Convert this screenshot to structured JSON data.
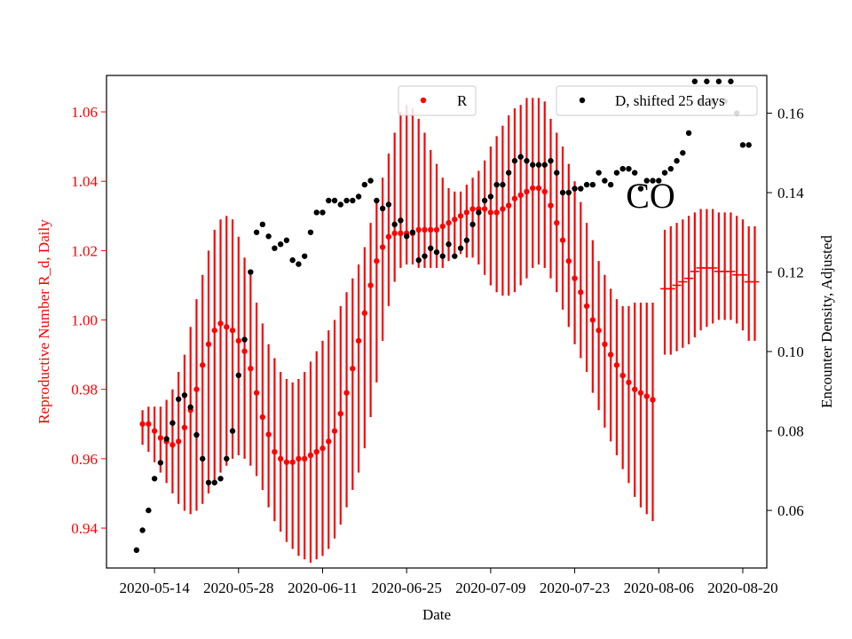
{
  "chart_data": {
    "type": "scatter",
    "region_label": "CO",
    "xlabel": "Date",
    "ylabel_left": "Reproductive Number R_d, Daily",
    "ylabel_right": "Encounter Density, Adjusted",
    "x_ticks": [
      "2020-05-14",
      "2020-05-28",
      "2020-06-11",
      "2020-06-25",
      "2020-07-09",
      "2020-07-23",
      "2020-08-06",
      "2020-08-20"
    ],
    "y_left_ticks": [
      0.94,
      0.96,
      0.98,
      1.0,
      1.02,
      1.04,
      1.06
    ],
    "y_right_ticks": [
      0.06,
      0.08,
      0.1,
      0.12,
      0.14,
      0.16
    ],
    "xlim": [
      "2020-05-06",
      "2020-08-24"
    ],
    "ylim_left": [
      0.9285,
      1.0705
    ],
    "ylim_right": [
      0.0455,
      0.1695
    ],
    "colors": {
      "R": "#ff0000",
      "D": "#000000"
    },
    "legend": [
      {
        "label": "R",
        "color": "#ff0000",
        "marker": "dot",
        "position": "top-center"
      },
      {
        "label": "D, shifted 25 days",
        "color": "#000000",
        "marker": "dot",
        "position": "top-right"
      }
    ],
    "series": [
      {
        "name": "R",
        "axis": "left",
        "start_date": "2020-05-12",
        "values": [
          0.97,
          0.97,
          0.968,
          0.966,
          0.965,
          0.964,
          0.965,
          0.969,
          0.974,
          0.98,
          0.987,
          0.993,
          0.997,
          0.999,
          0.998,
          0.997,
          0.994,
          0.991,
          0.986,
          0.979,
          0.972,
          0.967,
          0.962,
          0.96,
          0.959,
          0.959,
          0.96,
          0.96,
          0.961,
          0.962,
          0.963,
          0.965,
          0.968,
          0.973,
          0.979,
          0.986,
          0.994,
          1.002,
          1.01,
          1.017,
          1.021,
          1.024,
          1.025,
          1.025,
          1.025,
          1.025,
          1.026,
          1.026,
          1.026,
          1.026,
          1.027,
          1.028,
          1.029,
          1.03,
          1.031,
          1.032,
          1.032,
          1.032,
          1.031,
          1.031,
          1.032,
          1.033,
          1.035,
          1.036,
          1.037,
          1.038,
          1.038,
          1.037,
          1.033,
          1.028,
          1.023,
          1.017,
          1.012,
          1.008,
          1.004,
          1.0,
          0.997,
          0.993,
          0.99,
          0.987,
          0.984,
          0.982,
          0.98,
          0.979,
          0.978,
          0.977
        ],
        "err_low": [
          0.964,
          0.962,
          0.959,
          0.956,
          0.953,
          0.95,
          0.947,
          0.945,
          0.944,
          0.945,
          0.947,
          0.95,
          0.953,
          0.956,
          0.958,
          0.96,
          0.961,
          0.96,
          0.958,
          0.955,
          0.951,
          0.946,
          0.942,
          0.939,
          0.936,
          0.934,
          0.932,
          0.931,
          0.93,
          0.931,
          0.932,
          0.934,
          0.937,
          0.941,
          0.946,
          0.951,
          0.956,
          0.963,
          0.972,
          0.982,
          0.994,
          1.004,
          1.011,
          1.015,
          1.016,
          1.016,
          1.015,
          1.015,
          1.015,
          1.015,
          1.015,
          1.017,
          1.018,
          1.019,
          1.018,
          1.018,
          1.016,
          1.013,
          1.01,
          1.008,
          1.007,
          1.007,
          1.008,
          1.01,
          1.012,
          1.015,
          1.016,
          1.015,
          1.012,
          1.008,
          1.003,
          0.998,
          0.993,
          0.989,
          0.985,
          0.979,
          0.974,
          0.969,
          0.965,
          0.961,
          0.957,
          0.953,
          0.949,
          0.946,
          0.944,
          0.942
        ],
        "err_high": [
          0.974,
          0.975,
          0.975,
          0.975,
          0.977,
          0.98,
          0.985,
          0.99,
          0.998,
          1.006,
          1.013,
          1.02,
          1.026,
          1.029,
          1.03,
          1.029,
          1.024,
          1.018,
          1.013,
          1.005,
          0.999,
          0.993,
          0.989,
          0.985,
          0.983,
          0.982,
          0.983,
          0.985,
          0.988,
          0.991,
          0.994,
          0.997,
          1.0,
          1.004,
          1.008,
          1.012,
          1.016,
          1.021,
          1.028,
          1.034,
          1.041,
          1.048,
          1.054,
          1.06,
          1.062,
          1.061,
          1.058,
          1.054,
          1.049,
          1.045,
          1.041,
          1.038,
          1.037,
          1.037,
          1.039,
          1.041,
          1.043,
          1.046,
          1.05,
          1.053,
          1.056,
          1.059,
          1.061,
          1.062,
          1.064,
          1.064,
          1.064,
          1.063,
          1.058,
          1.054,
          1.05,
          1.045,
          1.04,
          1.034,
          1.028,
          1.023,
          1.017,
          1.013,
          1.009,
          1.006,
          1.004,
          1.004,
          1.005,
          1.005,
          1.005,
          1.005
        ]
      },
      {
        "name": "R_projected",
        "axis": "left",
        "start_date": "2020-08-07",
        "values": [
          1.009,
          1.009,
          1.01,
          1.011,
          1.012,
          1.014,
          1.015,
          1.015,
          1.015,
          1.014,
          1.014,
          1.014,
          1.013,
          1.013,
          1.011,
          1.011
        ],
        "err_low": [
          0.99,
          0.99,
          0.991,
          0.992,
          0.993,
          0.995,
          0.997,
          0.998,
          0.999,
          1.0,
          1.0,
          1.0,
          0.999,
          0.997,
          0.994,
          0.994
        ],
        "err_high": [
          1.026,
          1.027,
          1.028,
          1.029,
          1.03,
          1.031,
          1.032,
          1.032,
          1.032,
          1.031,
          1.031,
          1.031,
          1.03,
          1.029,
          1.027,
          1.027
        ]
      },
      {
        "name": "D, shifted 25 days",
        "axis": "right",
        "start_date": "2020-05-11",
        "values": [
          0.05,
          0.055,
          0.06,
          0.068,
          0.072,
          0.078,
          0.082,
          0.088,
          0.089,
          0.086,
          0.079,
          0.073,
          0.067,
          0.067,
          0.068,
          0.073,
          0.08,
          0.094,
          0.103,
          0.12,
          0.13,
          0.132,
          0.129,
          0.126,
          0.127,
          0.128,
          0.123,
          0.122,
          0.124,
          0.13,
          0.135,
          0.135,
          0.138,
          0.138,
          0.137,
          0.138,
          0.138,
          0.139,
          0.142,
          0.143,
          0.138,
          0.136,
          0.137,
          0.132,
          0.133,
          0.129,
          0.13,
          0.123,
          0.124,
          0.126,
          0.125,
          0.124,
          0.127,
          0.124,
          0.126,
          0.128,
          0.132,
          0.135,
          0.138,
          0.139,
          0.142,
          0.142,
          0.145,
          0.148,
          0.149,
          0.148,
          0.147,
          0.147,
          0.147,
          0.148,
          0.145,
          0.14,
          0.14,
          0.141,
          0.141,
          0.142,
          0.142,
          0.145,
          0.143,
          0.142,
          0.145,
          0.146,
          0.146,
          0.145,
          0.141,
          0.143,
          0.143,
          0.143,
          0.145,
          0.146,
          0.148,
          0.15,
          0.155,
          0.168,
          0.163,
          0.168,
          0.163,
          0.168,
          0.163,
          0.168,
          0.16,
          0.152,
          0.152
        ]
      }
    ]
  }
}
